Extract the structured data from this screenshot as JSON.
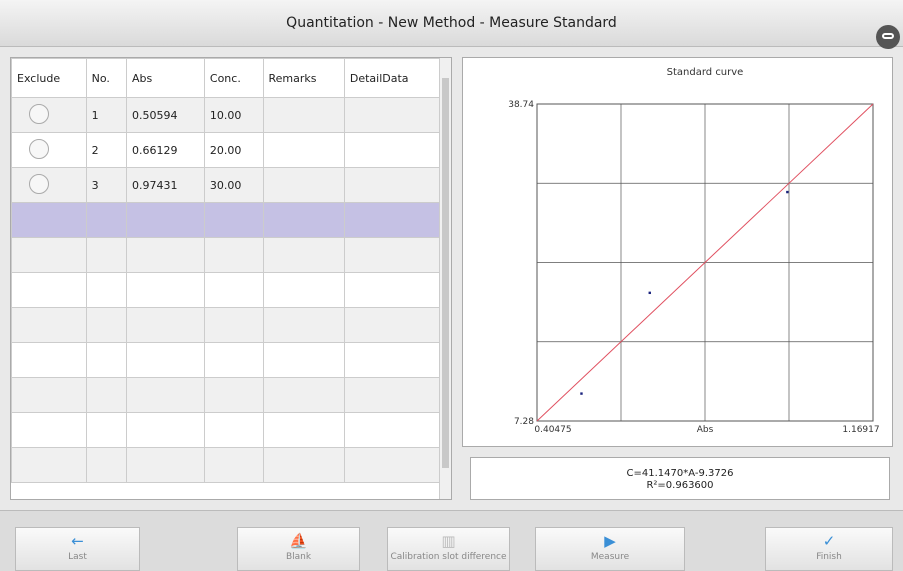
{
  "header": {
    "title": "Quantitation - New Method - Measure Standard"
  },
  "table": {
    "columns": [
      "Exclude",
      "No.",
      "Abs",
      "Conc.",
      "Remarks",
      "DetailData"
    ],
    "rows": [
      {
        "no": "1",
        "abs": "0.50594",
        "conc": "10.00"
      },
      {
        "no": "2",
        "abs": "0.66129",
        "conc": "20.00"
      },
      {
        "no": "3",
        "abs": "0.97431",
        "conc": "30.00"
      }
    ]
  },
  "chart": {
    "type": "scatter",
    "title": "Standard curve",
    "x_label": "Abs",
    "x": [
      0.50594,
      0.66129,
      0.97431
    ],
    "values": [
      10,
      20,
      30
    ],
    "color": "#1a237e",
    "xlim": [
      0.40475,
      1.16917
    ],
    "ylim": [
      7.28,
      38.74
    ],
    "xticks": [
      0.40475,
      1.16917
    ],
    "yticks": [
      7.28,
      38.74
    ],
    "grid": true,
    "fit": {
      "slope": 41.147,
      "intercept": -9.3726,
      "color": "#e05060",
      "label": "C=41.1470*A-9.3726"
    },
    "r2_label": "R²=0.963600"
  },
  "buttons": [
    "Last",
    "Blank",
    "Calibration slot difference",
    "Measure",
    "Finish"
  ]
}
